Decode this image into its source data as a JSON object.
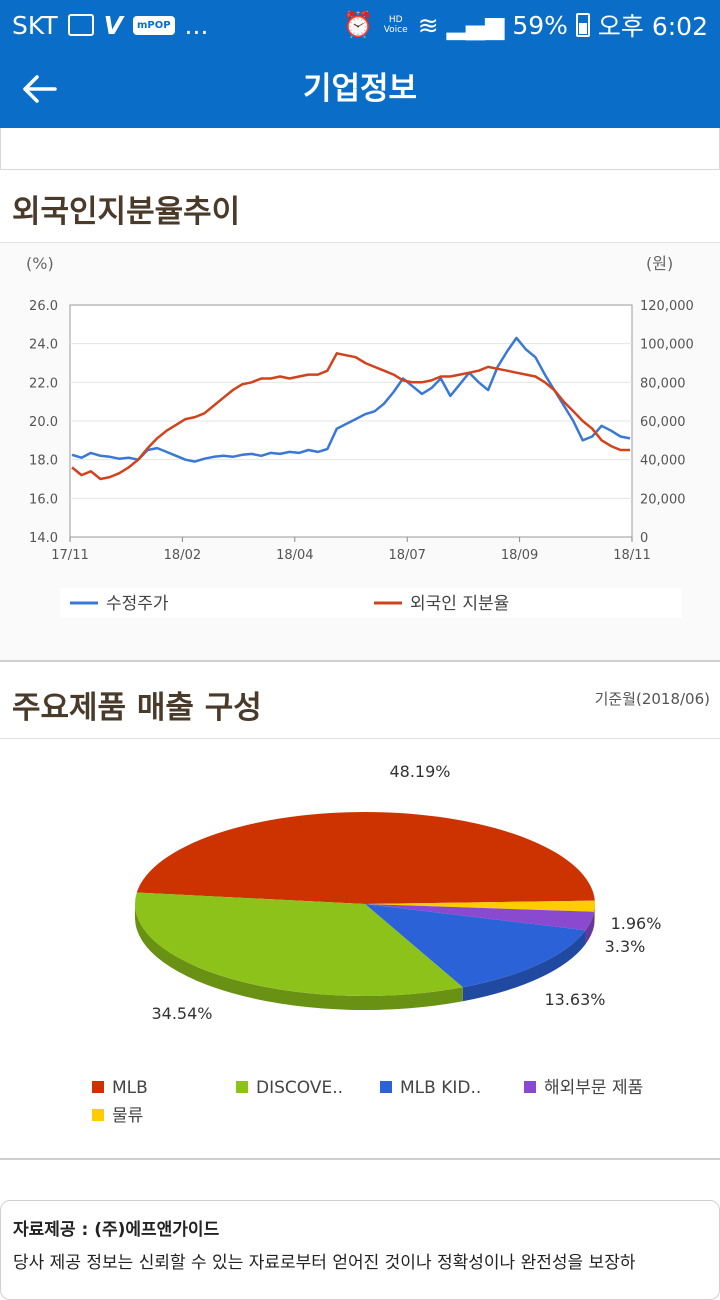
{
  "status_bar": {
    "carrier": "SKT",
    "pop_label": "mPOP",
    "more": "...",
    "hd_label": "HD Voice",
    "battery": "59%",
    "time": "오후 6:02"
  },
  "app_bar": {
    "title": "기업정보",
    "back_icon": "arrow-left-icon"
  },
  "sections": {
    "foreign_ownership_title": "외국인지분율추이",
    "product_sales_title": "주요제품 매출 구성",
    "base_month": "기준월(2018/06)"
  },
  "notice": {
    "title": "자료제공 : (주)에프앤가이드",
    "body": "당사 제공 정보는 신뢰할 수 있는 자료로부터 얻어진 것이나 정확성이나 완전성을 보장하"
  },
  "colors": {
    "brand": "#0a6ec8",
    "price_line": "#3a78d8",
    "foreign_line": "#d0431c",
    "mlb": "#cc3300",
    "discovery": "#8cc21a",
    "mlb_kids": "#2b62d8",
    "overseas": "#8a4ad0",
    "logistics": "#ffcc00"
  },
  "chart_data": [
    {
      "type": "line",
      "left_unit": "(%)",
      "right_unit": "(원)",
      "x_ticks": [
        "17/11",
        "18/02",
        "18/04",
        "18/07",
        "18/09",
        "18/11"
      ],
      "y_left_ticks": [
        "26.0",
        "24.0",
        "22.0",
        "20.0",
        "18.0",
        "16.0",
        "14.0"
      ],
      "y_right_ticks": [
        "120,000",
        "100,000",
        "80,000",
        "60,000",
        "40,000",
        "20,000",
        "0"
      ],
      "ylim_left": [
        14,
        26
      ],
      "ylim_right": [
        0,
        120000
      ],
      "grid": true,
      "legend_position": "bottom",
      "series": [
        {
          "name": "수정주가",
          "axis": "right",
          "color": "#3a78d8",
          "values": [
            42500,
            41000,
            43500,
            42000,
            41500,
            40500,
            41000,
            40000,
            45000,
            46000,
            44000,
            42000,
            40000,
            39000,
            40500,
            41500,
            42000,
            41500,
            42500,
            43000,
            42000,
            43500,
            43000,
            44000,
            43500,
            45000,
            44000,
            45500,
            56000,
            58500,
            61000,
            63500,
            65000,
            69000,
            75000,
            82000,
            78000,
            74000,
            77000,
            82000,
            73000,
            79000,
            85000,
            80000,
            76000,
            88000,
            96000,
            103000,
            97000,
            93000,
            84000,
            76000,
            68000,
            60000,
            50000,
            52000,
            57500,
            55000,
            52000,
            51000
          ]
        },
        {
          "name": "외국인 지분율",
          "axis": "left",
          "color": "#d0431c",
          "values": [
            17.6,
            17.2,
            17.4,
            17.0,
            17.1,
            17.3,
            17.6,
            18.0,
            18.6,
            19.1,
            19.5,
            19.8,
            20.1,
            20.2,
            20.4,
            20.8,
            21.2,
            21.6,
            21.9,
            22.0,
            22.2,
            22.2,
            22.3,
            22.2,
            22.3,
            22.4,
            22.4,
            22.6,
            23.5,
            23.4,
            23.3,
            23.0,
            22.8,
            22.6,
            22.4,
            22.1,
            22.0,
            22.0,
            22.1,
            22.3,
            22.3,
            22.4,
            22.5,
            22.6,
            22.8,
            22.7,
            22.6,
            22.5,
            22.4,
            22.3,
            22.0,
            21.6,
            21.0,
            20.5,
            20.0,
            19.6,
            19.0,
            18.7,
            18.5,
            18.5
          ]
        }
      ]
    },
    {
      "type": "pie",
      "categories": [
        "MLB",
        "DISCOVE..",
        "MLB KID..",
        "해외부문 제품",
        "물류"
      ],
      "values": [
        48.19,
        34.54,
        13.63,
        3.3,
        1.96
      ],
      "value_labels": [
        "48.19%",
        "34.54%",
        "13.63%",
        "3.3%",
        "1.96%"
      ],
      "legend_position": "bottom",
      "colors": [
        "#cc3300",
        "#8cc21a",
        "#2b62d8",
        "#8a4ad0",
        "#ffcc00"
      ]
    }
  ]
}
